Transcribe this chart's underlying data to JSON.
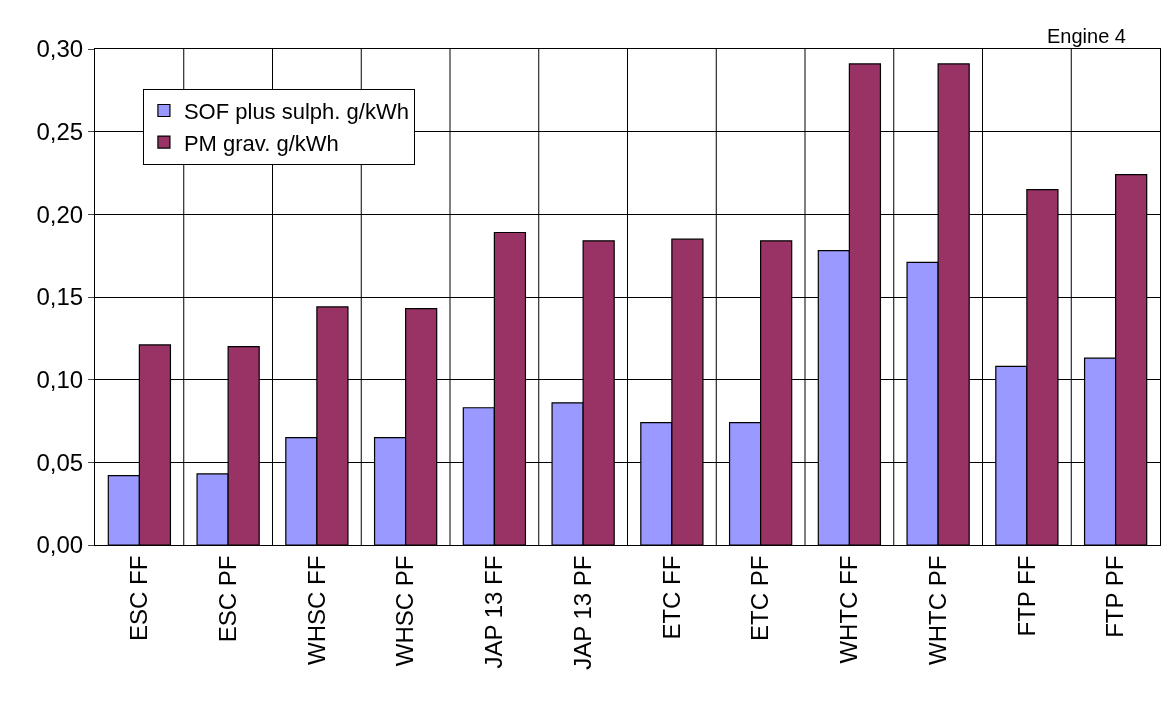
{
  "chart_data": {
    "type": "bar",
    "annotations": [
      "Engine 4"
    ],
    "categories": [
      "ESC FF",
      "ESC PF",
      "WHSC FF",
      "WHSC PF",
      "JAP 13 FF",
      "JAP 13 PF",
      "ETC FF",
      "ETC PF",
      "WHTC FF",
      "WHTC PF",
      "FTP FF",
      "FTP PF"
    ],
    "series": [
      {
        "name": "SOF plus sulph. g/kWh",
        "color": "#9999ff",
        "values": [
          0.042,
          0.043,
          0.065,
          0.065,
          0.083,
          0.086,
          0.074,
          0.074,
          0.178,
          0.171,
          0.108,
          0.113
        ]
      },
      {
        "name": "PM grav. g/kWh",
        "color": "#993366",
        "values": [
          0.121,
          0.12,
          0.144,
          0.143,
          0.189,
          0.184,
          0.185,
          0.184,
          0.291,
          0.291,
          0.215,
          0.224
        ]
      }
    ],
    "ylim": [
      0,
      0.3
    ],
    "yticks": [
      {
        "value": 0,
        "label": "0,00"
      },
      {
        "value": 0.05,
        "label": "0,05"
      },
      {
        "value": 0.1,
        "label": "0,10"
      },
      {
        "value": 0.15,
        "label": "0,15"
      },
      {
        "value": 0.2,
        "label": "0,20"
      },
      {
        "value": 0.25,
        "label": "0,25"
      },
      {
        "value": 0.3,
        "label": "0,30"
      }
    ],
    "grid": true,
    "legend": "top left"
  }
}
